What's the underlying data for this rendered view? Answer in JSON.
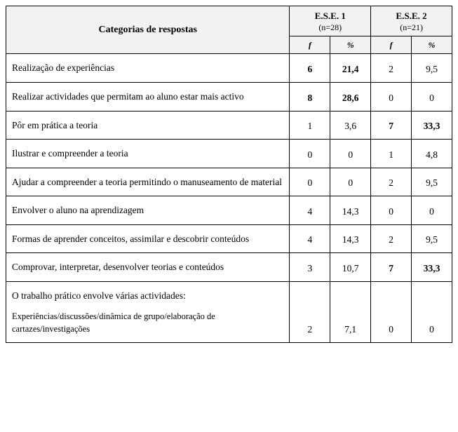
{
  "header": {
    "categories_label": "Categorias de respostas",
    "groups": [
      {
        "title": "E.S.E. 1",
        "n": "(n=28)"
      },
      {
        "title": "E.S.E. 2",
        "n": "(n=21)"
      }
    ],
    "sub": {
      "f": "f",
      "pct": "%"
    }
  },
  "rows": [
    {
      "label": "Realização de experiências",
      "v": [
        "6",
        "21,4",
        "2",
        "9,5"
      ],
      "bold": [
        true,
        true,
        false,
        false
      ]
    },
    {
      "label": "Realizar actividades que permitam ao aluno estar mais activo",
      "v": [
        "8",
        "28,6",
        "0",
        "0"
      ],
      "bold": [
        true,
        true,
        false,
        false
      ]
    },
    {
      "label": "Pôr em prática a teoria",
      "v": [
        "1",
        "3,6",
        "7",
        "33,3"
      ],
      "bold": [
        false,
        false,
        true,
        true
      ]
    },
    {
      "label": "Ilustrar e compreender a teoria",
      "v": [
        "0",
        "0",
        "1",
        "4,8"
      ],
      "bold": [
        false,
        false,
        false,
        false
      ]
    },
    {
      "label": "Ajudar a compreender a teoria permitindo o manuseamento de material",
      "v": [
        "0",
        "0",
        "2",
        "9,5"
      ],
      "bold": [
        false,
        false,
        false,
        false
      ]
    },
    {
      "label": "Envolver o aluno na aprendizagem",
      "v": [
        "4",
        "14,3",
        "0",
        "0"
      ],
      "bold": [
        false,
        false,
        false,
        false
      ]
    },
    {
      "label": "Formas de aprender conceitos, assimilar e descobrir conteúdos",
      "v": [
        "4",
        "14,3",
        "2",
        "9,5"
      ],
      "bold": [
        false,
        false,
        false,
        false
      ]
    },
    {
      "label": "Comprovar, interpretar, desenvolver teorias e conteúdos",
      "v": [
        "3",
        "10,7",
        "7",
        "33,3"
      ],
      "bold": [
        false,
        false,
        true,
        true
      ]
    },
    {
      "label": "O trabalho prático envolve várias actividades:",
      "sub": "Experiências/discussões/dinâmica de grupo/elaboração de cartazes/investigações",
      "v": [
        "2",
        "7,1",
        "0",
        "0"
      ],
      "bold": [
        false,
        false,
        false,
        false
      ]
    }
  ],
  "style": {
    "background": "#ffffff",
    "header_bg": "#f2f2f2",
    "border_color": "#000000",
    "font_family": "Garamond, Georgia, 'Times New Roman', serif",
    "label_fontsize": 13.5,
    "header_fontsize": 14,
    "col_widths": {
      "category": 405,
      "value": 58
    }
  }
}
